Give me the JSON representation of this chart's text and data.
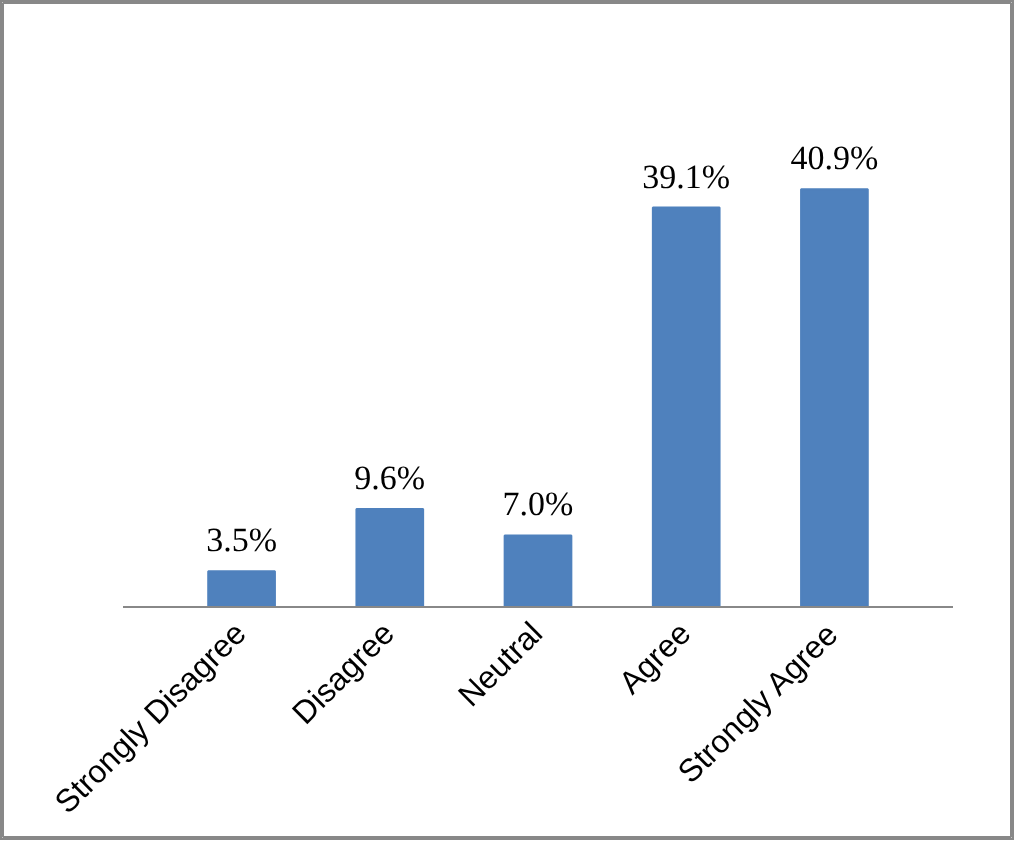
{
  "chart_data": {
    "type": "bar",
    "categories": [
      "Strongly Disagree",
      "Disagree",
      "Neutral",
      "Agree",
      "Strongly Agree"
    ],
    "values": [
      3.5,
      9.6,
      7.0,
      39.1,
      40.9
    ],
    "value_labels": [
      "3.5%",
      "9.6%",
      "7.0%",
      "39.1%",
      "40.9%"
    ],
    "color": "#4f81bd"
  }
}
